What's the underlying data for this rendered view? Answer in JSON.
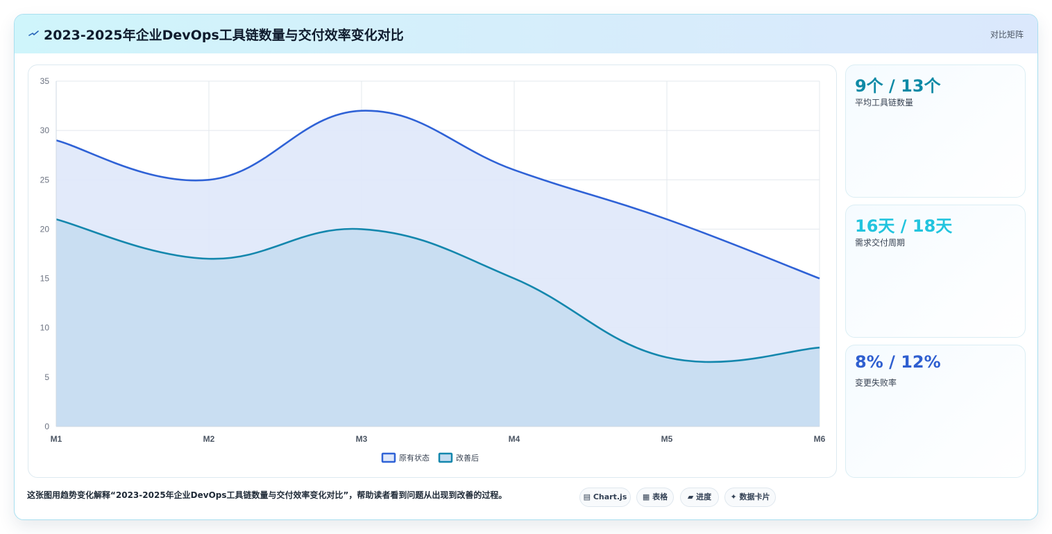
{
  "header": {
    "title": "2023-2025年企业DevOps工具链数量与交付效率变化对比",
    "tag": "对比矩阵"
  },
  "stats": [
    {
      "value": "9个 / 13个",
      "label": "平均工具链数量",
      "color": "#0e8aa6"
    },
    {
      "value": "16天 / 18天",
      "label": "需求交付周期",
      "color": "#22c4de"
    },
    {
      "value": "8% / 12%",
      "label": "变更失败率",
      "color": "#2f5fd0"
    }
  ],
  "footer": {
    "description": "这张图用趋势变化解释“2023-2025年企业DevOps工具链数量与交付效率变化对比”，帮助读者看到问题从出现到改善的过程。",
    "pills": [
      {
        "icon": "chart-icon",
        "label": "Chart.js"
      },
      {
        "icon": "table-icon",
        "label": "表格"
      },
      {
        "icon": "progress-icon",
        "label": "进度"
      },
      {
        "icon": "card-icon",
        "label": "数据卡片"
      }
    ]
  },
  "chart_data": {
    "type": "area",
    "categories": [
      "M1",
      "M2",
      "M3",
      "M4",
      "M5",
      "M6"
    ],
    "ylim": [
      0,
      35
    ],
    "yticks": [
      0,
      5,
      10,
      15,
      20,
      25,
      30,
      35
    ],
    "grid": true,
    "legend": "bottom",
    "series": [
      {
        "name": "原有状态",
        "values": [
          29,
          25,
          32,
          26,
          21,
          15
        ],
        "color": "#2f62d6",
        "fill": "#dfe8fa"
      },
      {
        "name": "改善后",
        "values": [
          21,
          17,
          20,
          15,
          7,
          8
        ],
        "color": "#1487ad",
        "fill": "#c4dcf0"
      }
    ]
  }
}
